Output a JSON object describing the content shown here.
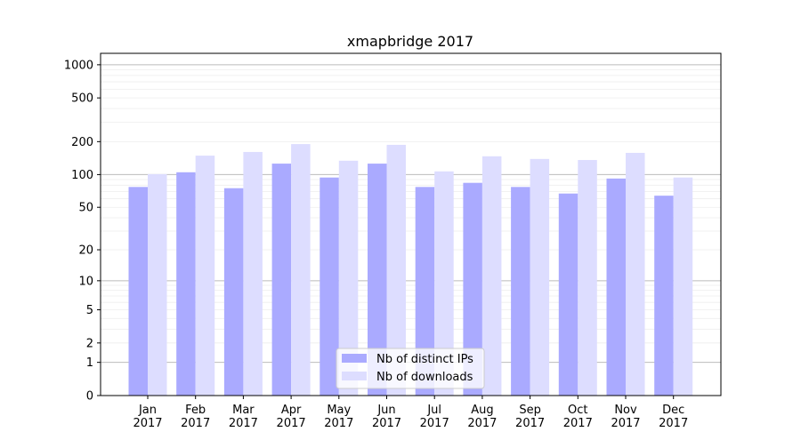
{
  "chart_data": {
    "type": "bar",
    "title": "xmapbridge 2017",
    "xlabel": "",
    "ylabel": "",
    "yscale": "symlog",
    "ylim": [
      0,
      1270
    ],
    "yticks": [
      0,
      1,
      2,
      5,
      10,
      20,
      50,
      100,
      200,
      500,
      1000
    ],
    "grid": true,
    "legend_position": "bottom-center",
    "categories": [
      "Jan\n2017",
      "Feb\n2017",
      "Mar\n2017",
      "Apr\n2017",
      "May\n2017",
      "Jun\n2017",
      "Jul\n2017",
      "Aug\n2017",
      "Sep\n2017",
      "Oct\n2017",
      "Nov\n2017",
      "Dec\n2017"
    ],
    "series": [
      {
        "name": "Nb of distinct IPs",
        "color": "#aaaaff",
        "values": [
          77,
          105,
          75,
          126,
          94,
          126,
          77,
          84,
          77,
          67,
          92,
          64
        ]
      },
      {
        "name": "Nb of downloads",
        "color": "#ddddff",
        "values": [
          101,
          149,
          161,
          190,
          134,
          187,
          107,
          147,
          139,
          136,
          158,
          94
        ]
      }
    ]
  }
}
